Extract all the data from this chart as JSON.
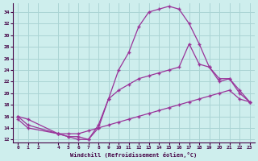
{
  "xlabel": "Windchill (Refroidissement éolien,°C)",
  "background_color": "#ceeeed",
  "grid_color": "#aad4d4",
  "line_color": "#993399",
  "xlim": [
    -0.5,
    23.5
  ],
  "ylim": [
    11.5,
    35.5
  ],
  "xticks": [
    0,
    1,
    2,
    4,
    5,
    6,
    7,
    8,
    9,
    10,
    11,
    12,
    13,
    14,
    15,
    16,
    17,
    18,
    19,
    20,
    21,
    22,
    23
  ],
  "yticks": [
    12,
    14,
    16,
    18,
    20,
    22,
    24,
    26,
    28,
    30,
    32,
    34
  ],
  "line1_x": [
    0,
    1,
    4,
    5,
    6,
    7,
    8,
    9,
    10,
    11,
    12,
    13,
    14,
    15,
    16,
    17,
    18,
    19,
    20,
    21,
    22,
    23
  ],
  "line1_y": [
    16.0,
    15.5,
    13.0,
    12.5,
    12.0,
    12.0,
    14.0,
    19.0,
    24.0,
    27.0,
    31.5,
    34.0,
    34.5,
    35.0,
    34.5,
    32.0,
    28.5,
    24.5,
    22.5,
    22.5,
    20.5,
    18.5
  ],
  "line2_x": [
    0,
    1,
    4,
    5,
    6,
    7,
    8,
    9,
    10,
    11,
    12,
    13,
    14,
    15,
    16,
    17,
    18,
    19,
    20,
    21,
    22,
    23
  ],
  "line2_y": [
    16.0,
    14.5,
    13.0,
    12.5,
    12.5,
    12.0,
    14.5,
    19.0,
    20.5,
    21.5,
    22.5,
    23.0,
    23.5,
    24.0,
    24.5,
    28.5,
    25.0,
    24.5,
    22.0,
    22.5,
    20.0,
    18.5
  ],
  "line3_x": [
    0,
    1,
    4,
    5,
    6,
    7,
    8,
    9,
    10,
    11,
    12,
    13,
    14,
    15,
    16,
    17,
    18,
    19,
    20,
    21,
    22,
    23
  ],
  "line3_y": [
    15.5,
    14.0,
    13.0,
    13.0,
    13.0,
    13.5,
    14.0,
    14.5,
    15.0,
    15.5,
    16.0,
    16.5,
    17.0,
    17.5,
    18.0,
    18.5,
    19.0,
    19.5,
    20.0,
    20.5,
    19.0,
    18.5
  ]
}
